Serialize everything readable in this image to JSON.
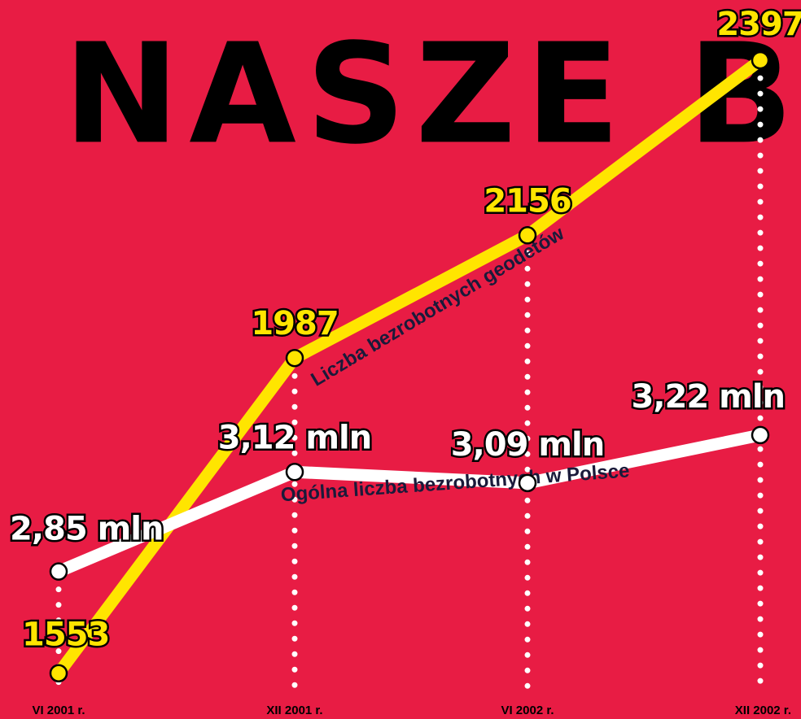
{
  "chart_data": {
    "type": "line",
    "title": "NASZE BE",
    "categories": [
      "VI 2001 r.",
      "XII 2001 r.",
      "VI 2002 r.",
      "XII 2002 r."
    ],
    "series": [
      {
        "name": "Liczba bezrobotnych geodetów",
        "color": "#ffe500",
        "values": [
          1553,
          1987,
          2156,
          2397
        ]
      },
      {
        "name": "Ogólna liczba bezrobotnych w Polsce",
        "color": "#ffffff",
        "axis": "y2",
        "values": [
          2.85,
          3.12,
          3.09,
          3.22
        ],
        "value_labels": [
          "2,85 mln",
          "3,12 mln",
          "3,09 mln",
          "3,22 mln"
        ]
      }
    ],
    "ylim": [
      1490,
      2480
    ],
    "y2lim": [
      2.45,
      4.4
    ]
  }
}
